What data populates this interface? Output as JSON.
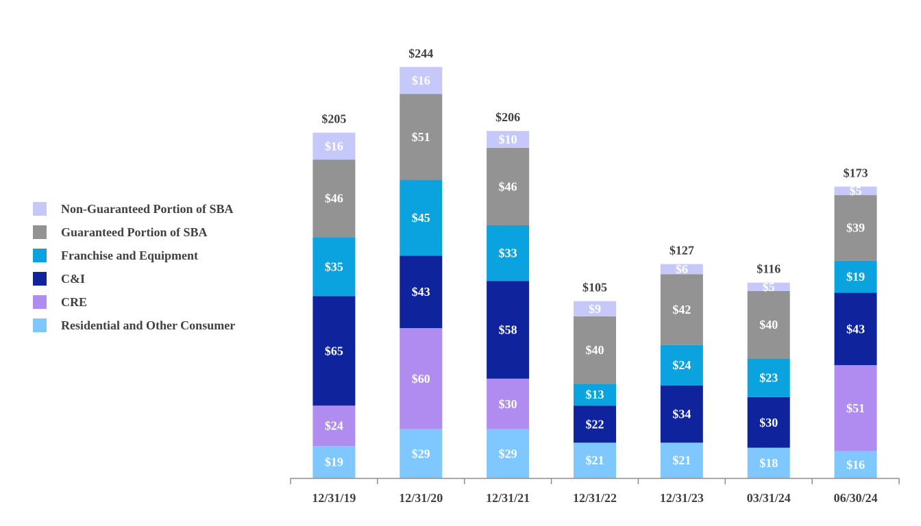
{
  "chart_data": {
    "type": "stacked-bar",
    "title": "",
    "xlabel": "",
    "ylabel": "",
    "value_prefix": "$",
    "ylim": [
      0,
      250
    ],
    "grid": false,
    "legend_position": "left",
    "categories": [
      "12/31/19",
      "12/31/20",
      "12/31/21",
      "12/31/22",
      "12/31/23",
      "03/31/24",
      "06/30/24"
    ],
    "totals": [
      "$205",
      "$244",
      "$206",
      "$105",
      "$127",
      "$116",
      "$173"
    ],
    "series": [
      {
        "name": "Residential and Other Consumer",
        "color": "#7FC7FF",
        "values": [
          19,
          29,
          29,
          21,
          21,
          18,
          16
        ]
      },
      {
        "name": "CRE",
        "color": "#B08CF0",
        "values": [
          24,
          60,
          30,
          0,
          0,
          0,
          51
        ]
      },
      {
        "name": "C&I",
        "color": "#0F239C",
        "values": [
          65,
          43,
          58,
          22,
          34,
          30,
          43
        ]
      },
      {
        "name": "Franchise and Equipment",
        "color": "#0AA3E0",
        "values": [
          35,
          45,
          33,
          13,
          24,
          23,
          19
        ]
      },
      {
        "name": "Guaranteed Portion of SBA",
        "color": "#939393",
        "values": [
          46,
          51,
          46,
          40,
          42,
          40,
          39
        ]
      },
      {
        "name": "Non-Guaranteed Portion of SBA",
        "color": "#C5C8F8",
        "values": [
          16,
          16,
          10,
          9,
          6,
          5,
          5
        ]
      }
    ],
    "legend": [
      {
        "name": "Non-Guaranteed Portion of SBA",
        "color": "#C5C8F8"
      },
      {
        "name": "Guaranteed Portion of SBA",
        "color": "#939393"
      },
      {
        "name": "Franchise and Equipment",
        "color": "#0AA3E0"
      },
      {
        "name": "C&I",
        "color": "#0F239C"
      },
      {
        "name": "CRE",
        "color": "#B08CF0"
      },
      {
        "name": "Residential and Other Consumer",
        "color": "#7FC7FF"
      }
    ]
  }
}
